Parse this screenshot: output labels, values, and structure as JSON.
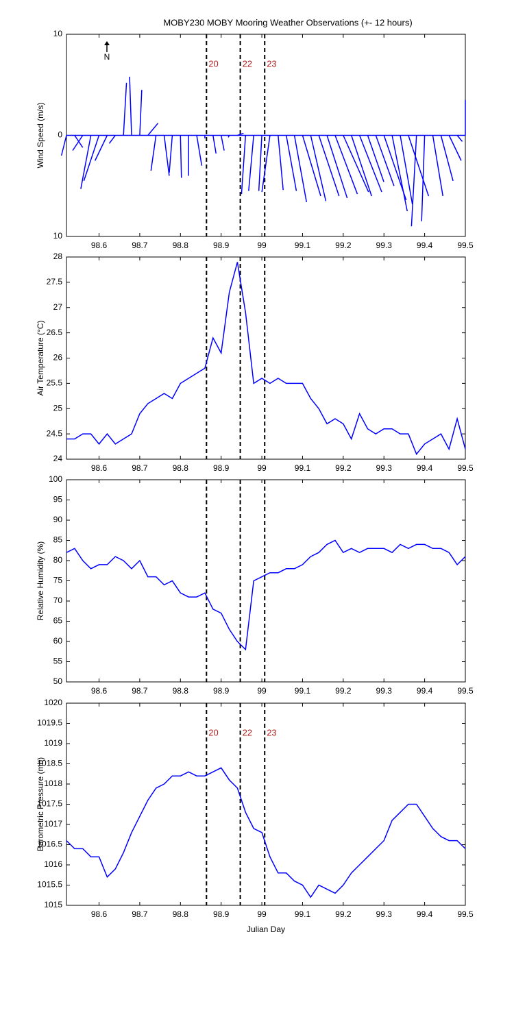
{
  "chart_data": [
    {
      "type": "stick",
      "title": "MOBY230 MOBY Mooring Weather Observations (+- 12 hours)",
      "y_label": "Wind Speed (m/s)",
      "north_label": "N",
      "x": [
        98.52,
        98.54,
        98.56,
        98.58,
        98.6,
        98.62,
        98.64,
        98.66,
        98.68,
        98.7,
        98.72,
        98.74,
        98.76,
        98.78,
        98.8,
        98.82,
        98.84,
        98.86,
        98.88,
        98.9,
        98.92,
        98.94,
        98.96,
        98.98,
        99.0,
        99.02,
        99.04,
        99.06,
        99.08,
        99.1,
        99.12,
        99.14,
        99.16,
        99.18,
        99.2,
        99.22,
        99.24,
        99.26,
        99.28,
        99.3,
        99.32,
        99.34,
        99.36,
        99.38,
        99.4,
        99.42,
        99.44,
        99.46,
        99.48,
        99.5
      ],
      "u": [
        -0.5,
        0.8,
        -1,
        -1,
        -1.5,
        -1.2,
        -0.6,
        0.3,
        -0.2,
        0.2,
        1,
        -0.5,
        0.5,
        -0.3,
        0.1,
        0,
        0.5,
        0,
        0.3,
        0.3,
        -0.1,
        0.6,
        -0.4,
        -0.5,
        -0.3,
        -0.8,
        0.5,
        1,
        1.2,
        1.8,
        1.5,
        2,
        2,
        2.2,
        2.5,
        2,
        2.2,
        1.6,
        1.8,
        2.2,
        1.5,
        1.2,
        2,
        -0.5,
        -0.3,
        1,
        1.2,
        1.2,
        0.5,
        0
      ],
      "v": [
        -2,
        -1.2,
        -1.5,
        -5.3,
        -4.5,
        -2.5,
        -0.8,
        5.2,
        5.8,
        4.5,
        1.2,
        -3.5,
        -4,
        -3.7,
        -4.2,
        -4,
        -3,
        -0.3,
        -1.8,
        -1.5,
        -0.2,
        0.2,
        -5.8,
        -5.5,
        -5.5,
        -5.6,
        -5.4,
        -5.5,
        -6.6,
        -6,
        -6.5,
        -6,
        -6.2,
        -5.8,
        -5.6,
        -6,
        -5.6,
        -4.6,
        -5,
        -6.4,
        -7.5,
        -6.8,
        -6,
        -9,
        -8.5,
        -6,
        -4.5,
        -2.5,
        -0.6,
        3.5
      ],
      "color": "#0000ff",
      "xlim": [
        98.52,
        99.5
      ],
      "ylim": [
        -10,
        10
      ],
      "xticks": [
        98.6,
        98.7,
        98.8,
        98.9,
        99,
        99.1,
        99.2,
        99.3,
        99.4,
        99.5
      ],
      "yticks": [
        {
          "value": -10,
          "label": "10"
        },
        0,
        10
      ],
      "vlines": [
        98.864,
        98.947,
        99.007
      ],
      "vline_labels": [
        "20",
        "22",
        "23"
      ],
      "annotation_color": "#b22222"
    },
    {
      "type": "line",
      "y_label": "Air Temperature (°C)",
      "x": [
        98.52,
        98.54,
        98.56,
        98.58,
        98.6,
        98.62,
        98.64,
        98.66,
        98.68,
        98.7,
        98.72,
        98.74,
        98.76,
        98.78,
        98.8,
        98.82,
        98.84,
        98.86,
        98.88,
        98.9,
        98.92,
        98.94,
        98.96,
        98.98,
        99.0,
        99.02,
        99.04,
        99.06,
        99.08,
        99.1,
        99.12,
        99.14,
        99.16,
        99.18,
        99.2,
        99.22,
        99.24,
        99.26,
        99.28,
        99.3,
        99.32,
        99.34,
        99.36,
        99.38,
        99.4,
        99.42,
        99.44,
        99.46,
        99.48,
        99.5
      ],
      "values": [
        24.4,
        24.4,
        24.5,
        24.5,
        24.3,
        24.5,
        24.3,
        24.4,
        24.5,
        24.9,
        25.1,
        25.2,
        25.3,
        25.2,
        25.5,
        25.6,
        25.7,
        25.8,
        26.4,
        26.1,
        27.3,
        27.9,
        26.9,
        25.5,
        25.6,
        25.5,
        25.6,
        25.5,
        25.5,
        25.5,
        25.2,
        25.0,
        24.7,
        24.8,
        24.7,
        24.4,
        24.9,
        24.6,
        24.5,
        24.6,
        24.6,
        24.5,
        24.5,
        24.1,
        24.3,
        24.4,
        24.5,
        24.2,
        24.8,
        24.2
      ],
      "color": "#0000ff",
      "xlim": [
        98.52,
        99.5
      ],
      "ylim": [
        24,
        28
      ],
      "xticks": [
        98.6,
        98.7,
        98.8,
        98.9,
        99,
        99.1,
        99.2,
        99.3,
        99.4,
        99.5
      ],
      "yticks": [
        24,
        24.5,
        25,
        25.5,
        26,
        26.5,
        27,
        27.5,
        28
      ],
      "vlines": [
        98.864,
        98.947,
        99.007
      ]
    },
    {
      "type": "line",
      "y_label": "Relative Humidity (%)",
      "x": [
        98.52,
        98.54,
        98.56,
        98.58,
        98.6,
        98.62,
        98.64,
        98.66,
        98.68,
        98.7,
        98.72,
        98.74,
        98.76,
        98.78,
        98.8,
        98.82,
        98.84,
        98.86,
        98.88,
        98.9,
        98.92,
        98.94,
        98.96,
        98.98,
        99.0,
        99.02,
        99.04,
        99.06,
        99.08,
        99.1,
        99.12,
        99.14,
        99.16,
        99.18,
        99.2,
        99.22,
        99.24,
        99.26,
        99.28,
        99.3,
        99.32,
        99.34,
        99.36,
        99.38,
        99.4,
        99.42,
        99.44,
        99.46,
        99.48,
        99.5
      ],
      "values": [
        82,
        83,
        80,
        78,
        79,
        79,
        81,
        80,
        78,
        80,
        76,
        76,
        74,
        75,
        72,
        71,
        71,
        72,
        68,
        67,
        63,
        60,
        58,
        75,
        76,
        77,
        77,
        78,
        78,
        79,
        81,
        82,
        84,
        85,
        82,
        83,
        82,
        83,
        83,
        83,
        82,
        84,
        83,
        84,
        84,
        83,
        83,
        82,
        79,
        81
      ],
      "color": "#0000ff",
      "xlim": [
        98.52,
        99.5
      ],
      "ylim": [
        50,
        100
      ],
      "xticks": [
        98.6,
        98.7,
        98.8,
        98.9,
        99,
        99.1,
        99.2,
        99.3,
        99.4,
        99.5
      ],
      "yticks": [
        50,
        55,
        60,
        65,
        70,
        75,
        80,
        85,
        90,
        95,
        100
      ],
      "vlines": [
        98.864,
        98.947,
        99.007
      ]
    },
    {
      "type": "line",
      "y_label": "Barometric Pressure (mb)",
      "x_label": "Julian Day",
      "x": [
        98.52,
        98.54,
        98.56,
        98.58,
        98.6,
        98.62,
        98.64,
        98.66,
        98.68,
        98.7,
        98.72,
        98.74,
        98.76,
        98.78,
        98.8,
        98.82,
        98.84,
        98.86,
        98.88,
        98.9,
        98.92,
        98.94,
        98.96,
        98.98,
        99.0,
        99.02,
        99.04,
        99.06,
        99.08,
        99.1,
        99.12,
        99.14,
        99.16,
        99.18,
        99.2,
        99.22,
        99.24,
        99.26,
        99.28,
        99.3,
        99.32,
        99.34,
        99.36,
        99.38,
        99.4,
        99.42,
        99.44,
        99.46,
        99.48,
        99.5
      ],
      "values": [
        1016.6,
        1016.4,
        1016.4,
        1016.2,
        1016.2,
        1015.7,
        1015.9,
        1016.3,
        1016.8,
        1017.2,
        1017.6,
        1017.9,
        1018.0,
        1018.2,
        1018.2,
        1018.3,
        1018.2,
        1018.2,
        1018.3,
        1018.4,
        1018.1,
        1017.9,
        1017.3,
        1016.9,
        1016.8,
        1016.2,
        1015.8,
        1015.8,
        1015.6,
        1015.5,
        1015.2,
        1015.5,
        1015.4,
        1015.3,
        1015.5,
        1015.8,
        1016.0,
        1016.2,
        1016.4,
        1016.6,
        1017.1,
        1017.3,
        1017.5,
        1017.5,
        1017.2,
        1016.9,
        1016.7,
        1016.6,
        1016.6,
        1016.4
      ],
      "color": "#0000ff",
      "xlim": [
        98.52,
        99.5
      ],
      "ylim": [
        1015,
        1020
      ],
      "xticks": [
        98.6,
        98.7,
        98.8,
        98.9,
        99,
        99.1,
        99.2,
        99.3,
        99.4,
        99.5
      ],
      "yticks": [
        1015,
        1015.5,
        1016,
        1016.5,
        1017,
        1017.5,
        1018,
        1018.5,
        1019,
        1019.5,
        1020
      ],
      "vlines": [
        98.864,
        98.947,
        99.007
      ],
      "vline_labels": [
        "20",
        "22",
        "23"
      ],
      "annotation_color": "#b22222"
    }
  ]
}
